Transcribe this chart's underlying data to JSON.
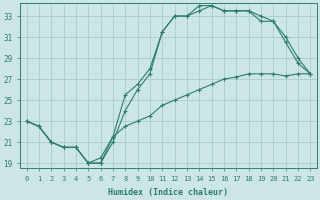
{
  "xlabel": "Humidex (Indice chaleur)",
  "ylabel": "",
  "bg_color": "#cce5e5",
  "grid_color": "#aacccc",
  "line_color": "#2e7d6e",
  "xlim": [
    -0.5,
    23.5
  ],
  "ylim": [
    18.5,
    34.2
  ],
  "xticks": [
    0,
    1,
    2,
    3,
    4,
    5,
    6,
    7,
    8,
    9,
    10,
    11,
    12,
    13,
    14,
    15,
    16,
    17,
    18,
    19,
    20,
    21,
    22,
    23
  ],
  "yticks": [
    19,
    21,
    23,
    25,
    27,
    29,
    31,
    33
  ],
  "series1_x": [
    0,
    1,
    2,
    3,
    4,
    5,
    6,
    7,
    8,
    9,
    10,
    11,
    12,
    13,
    14,
    15,
    16,
    17,
    18,
    19,
    20,
    21,
    22,
    23
  ],
  "series1_y": [
    23.0,
    22.5,
    21.0,
    20.5,
    20.5,
    19.0,
    19.0,
    21.0,
    24.0,
    26.0,
    27.5,
    31.5,
    33.0,
    33.0,
    34.0,
    34.0,
    33.5,
    33.5,
    33.5,
    32.5,
    32.5,
    30.5,
    28.5,
    27.5
  ],
  "series2_x": [
    0,
    1,
    2,
    3,
    4,
    5,
    6,
    7,
    8,
    9,
    10,
    11,
    12,
    13,
    14,
    15,
    16,
    17,
    18,
    19,
    20,
    21,
    22,
    23
  ],
  "series2_y": [
    23.0,
    22.5,
    21.0,
    20.5,
    20.5,
    19.0,
    19.0,
    21.5,
    25.5,
    26.5,
    28.0,
    31.5,
    33.0,
    33.0,
    33.5,
    34.0,
    33.5,
    33.5,
    33.5,
    33.0,
    32.5,
    31.0,
    29.0,
    27.5
  ],
  "series3_x": [
    0,
    1,
    2,
    3,
    4,
    5,
    6,
    7,
    8,
    9,
    10,
    11,
    12,
    13,
    14,
    15,
    16,
    17,
    18,
    19,
    20,
    21,
    22,
    23
  ],
  "series3_y": [
    23.0,
    22.5,
    21.0,
    20.5,
    20.5,
    19.0,
    19.5,
    21.5,
    22.5,
    23.0,
    23.5,
    24.5,
    25.0,
    25.5,
    26.0,
    26.5,
    27.0,
    27.2,
    27.5,
    27.5,
    27.5,
    27.3,
    27.5,
    27.5
  ]
}
